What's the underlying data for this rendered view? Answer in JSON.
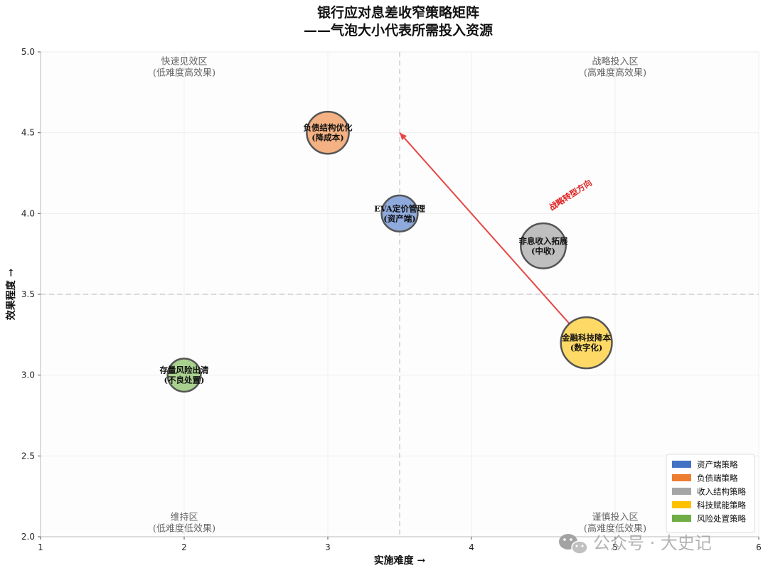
{
  "chart_data": {
    "type": "scatter",
    "title": [
      "银行应对息差收窄策略矩阵",
      "——气泡大小代表所需投入资源"
    ],
    "xlabel": "实施难度 →",
    "ylabel": "效果程度 →",
    "xlim": [
      1,
      6
    ],
    "ylim": [
      2.0,
      5.0
    ],
    "xticks": [
      "1",
      "2",
      "3",
      "4",
      "5",
      "6"
    ],
    "yticks": [
      "2.0",
      "2.5",
      "3.0",
      "3.5",
      "4.0",
      "4.5",
      "5.0"
    ],
    "grid": true,
    "divider": {
      "x": 3.5,
      "y": 3.5
    },
    "quadrants": [
      {
        "line1": "快速见效区",
        "line2": "(低难度高效果)",
        "x": 2,
        "y": 4.88
      },
      {
        "line1": "战略投入区",
        "line2": "(高难度高效果)",
        "x": 5,
        "y": 4.88
      },
      {
        "line1": "维持区",
        "line2": "(低难度低效果)",
        "x": 2,
        "y": 2.06
      },
      {
        "line1": "谨慎投入区",
        "line2": "(高难度低效果)",
        "x": 5,
        "y": 2.06
      }
    ],
    "points": [
      {
        "line1": "负债结构优化",
        "line2": "(降成本)",
        "x": 3.0,
        "y": 4.5,
        "size": 3,
        "category": "负债端策略"
      },
      {
        "line1": "EVA定价管理",
        "line2": "(资产端)",
        "x": 3.5,
        "y": 4.0,
        "size": 2,
        "category": "资产端策略"
      },
      {
        "line1": "非息收入拓展",
        "line2": "(中收)",
        "x": 4.5,
        "y": 3.8,
        "size": 3.5,
        "category": "收入结构策略"
      },
      {
        "line1": "金融科技降本",
        "line2": "(数字化)",
        "x": 4.8,
        "y": 3.2,
        "size": 4.5,
        "category": "科技赋能策略"
      },
      {
        "line1": "存量风险出清",
        "line2": "(不良处置)",
        "x": 2.0,
        "y": 3.0,
        "size": 1.5,
        "category": "风险处置策略"
      }
    ],
    "arrow": {
      "from": [
        4.75,
        3.25
      ],
      "to": [
        3.5,
        4.5
      ],
      "label": "战略转型方向",
      "label_x": 4.7,
      "label_y": 4.1
    },
    "legend": {
      "position": "bottom-right",
      "items": [
        {
          "label": "资产端策略",
          "color": "#4472C4"
        },
        {
          "label": "负债端策略",
          "color": "#ED7D31"
        },
        {
          "label": "收入结构策略",
          "color": "#A5A5A5"
        },
        {
          "label": "科技赋能策略",
          "color": "#FFC000"
        },
        {
          "label": "风险处置策略",
          "color": "#70AD47"
        }
      ]
    },
    "bubble_colors": {
      "资产端策略": "#8EA9DB",
      "负债端策略": "#F4B183",
      "收入结构策略": "#BFBFBF",
      "科技赋能策略": "#FFD966",
      "风险处置策略": "#A9D18E"
    }
  },
  "watermark": {
    "text": "公众号 · 大史记"
  }
}
